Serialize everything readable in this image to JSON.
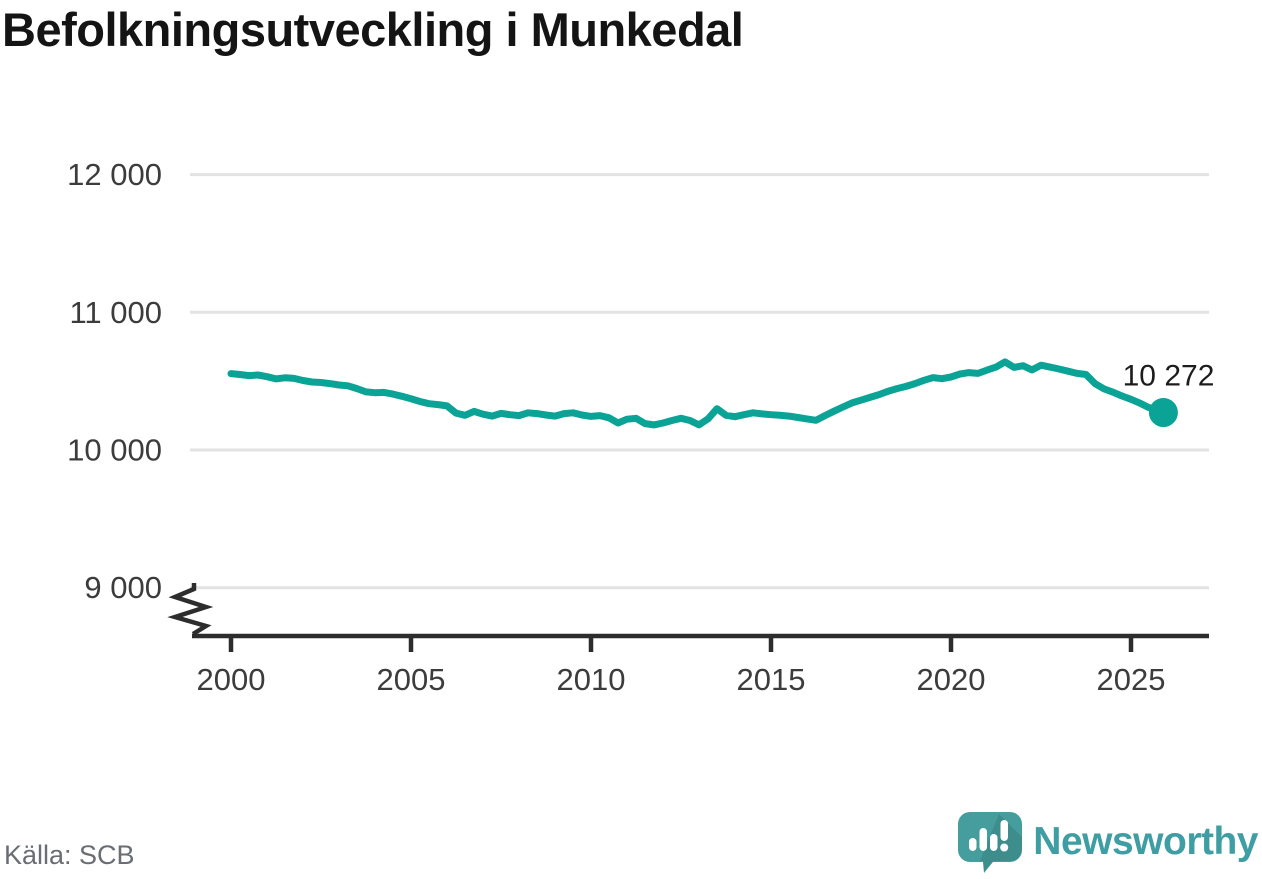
{
  "title": "Befolkningsutveckling i Munkedal",
  "source": {
    "text": "Källa: SCB"
  },
  "brand": {
    "name": "Newsworthy"
  },
  "colors": {
    "line": "#0aa396",
    "grid": "#e3e3e3",
    "axis": "#2d2d2d",
    "tick_text": "#3c3c3c",
    "annotation_text": "#1c1c1c",
    "brand_teal": "#459d9e",
    "background": "#ffffff"
  },
  "chart_data": {
    "type": "line",
    "title": "Befolkningsutveckling i Munkedal",
    "xlabel": "",
    "ylabel": "",
    "grid": "horizontal",
    "axis_break_below": 9000,
    "xlim": [
      1998.9,
      2027.2
    ],
    "ylim": [
      8750,
      12150
    ],
    "x_ticks": [
      2000,
      2005,
      2010,
      2015,
      2020,
      2025
    ],
    "x_tick_labels": [
      "2000",
      "2005",
      "2010",
      "2015",
      "2020",
      "2025"
    ],
    "y_ticks": [
      9000,
      10000,
      11000,
      12000
    ],
    "y_tick_labels": [
      "9 000",
      "10 000",
      "11 000",
      "12 000"
    ],
    "end_label": "10 272",
    "end_value": 10272,
    "series": [
      {
        "name": "Befolkning",
        "x": [
          2000.0,
          2000.25,
          2000.5,
          2000.75,
          2001.0,
          2001.25,
          2001.5,
          2001.75,
          2002.0,
          2002.25,
          2002.5,
          2002.75,
          2003.0,
          2003.25,
          2003.5,
          2003.75,
          2004.0,
          2004.25,
          2004.5,
          2004.75,
          2005.0,
          2005.25,
          2005.5,
          2005.75,
          2006.0,
          2006.25,
          2006.5,
          2006.75,
          2007.0,
          2007.25,
          2007.5,
          2007.75,
          2008.0,
          2008.25,
          2008.5,
          2008.75,
          2009.0,
          2009.25,
          2009.5,
          2009.75,
          2010.0,
          2010.25,
          2010.5,
          2010.75,
          2011.0,
          2011.25,
          2011.5,
          2011.75,
          2012.0,
          2012.25,
          2012.5,
          2012.75,
          2013.0,
          2013.25,
          2013.5,
          2013.75,
          2014.0,
          2014.25,
          2014.5,
          2014.75,
          2015.0,
          2015.25,
          2015.5,
          2015.75,
          2016.0,
          2016.25,
          2016.5,
          2016.75,
          2017.0,
          2017.25,
          2017.5,
          2017.75,
          2018.0,
          2018.25,
          2018.5,
          2018.75,
          2019.0,
          2019.25,
          2019.5,
          2019.75,
          2020.0,
          2020.25,
          2020.5,
          2020.75,
          2021.0,
          2021.25,
          2021.5,
          2021.75,
          2022.0,
          2022.25,
          2022.5,
          2022.75,
          2023.0,
          2023.25,
          2023.5,
          2023.75,
          2024.0,
          2024.25,
          2024.5,
          2024.75,
          2025.0,
          2025.25,
          2025.5,
          2025.9
        ],
        "values": [
          10555,
          10548,
          10540,
          10545,
          10532,
          10516,
          10524,
          10520,
          10505,
          10494,
          10490,
          10482,
          10472,
          10466,
          10446,
          10422,
          10416,
          10418,
          10406,
          10390,
          10372,
          10352,
          10336,
          10330,
          10320,
          10268,
          10252,
          10280,
          10260,
          10246,
          10266,
          10256,
          10250,
          10270,
          10264,
          10254,
          10246,
          10264,
          10270,
          10254,
          10244,
          10250,
          10234,
          10196,
          10224,
          10230,
          10192,
          10182,
          10196,
          10214,
          10230,
          10214,
          10182,
          10226,
          10300,
          10252,
          10242,
          10256,
          10270,
          10262,
          10256,
          10252,
          10246,
          10236,
          10226,
          10216,
          10250,
          10282,
          10312,
          10342,
          10362,
          10382,
          10402,
          10426,
          10446,
          10462,
          10482,
          10506,
          10526,
          10518,
          10530,
          10552,
          10562,
          10556,
          10580,
          10602,
          10640,
          10600,
          10612,
          10582,
          10616,
          10602,
          10588,
          10572,
          10556,
          10548,
          10482,
          10444,
          10420,
          10392,
          10368,
          10340,
          10308,
          10272
        ]
      }
    ]
  }
}
